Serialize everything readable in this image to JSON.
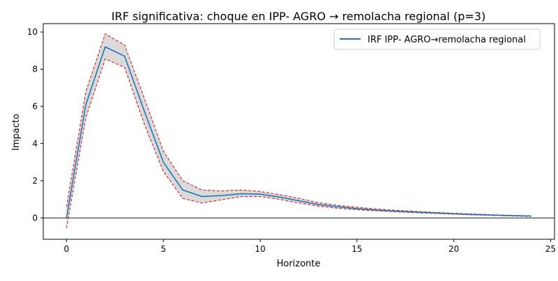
{
  "chart_data": {
    "type": "line",
    "title": "IRF significativa: choque en IPP- AGRO → remolacha regional (p=3)",
    "xlabel": "Horizonte",
    "ylabel": "Impacto",
    "xlim": [
      -1.2,
      25.2
    ],
    "ylim": [
      -1.15,
      10.45
    ],
    "xticks": [
      0,
      5,
      10,
      15,
      20,
      25
    ],
    "yticks": [
      0,
      2,
      4,
      6,
      8,
      10
    ],
    "grid": false,
    "zero_line": true,
    "legend_position": "top-right",
    "x": [
      0,
      1,
      2,
      3,
      4,
      5,
      6,
      7,
      8,
      9,
      10,
      11,
      12,
      13,
      14,
      15,
      16,
      17,
      18,
      19,
      20,
      21,
      22,
      23,
      24
    ],
    "series": [
      {
        "name": "IRF IPP- AGRO→remolacha regional",
        "color": "#1f77b4",
        "values": [
          0.0,
          6.1,
          9.2,
          8.7,
          5.8,
          3.0,
          1.5,
          1.15,
          1.2,
          1.3,
          1.28,
          1.12,
          0.92,
          0.72,
          0.6,
          0.5,
          0.42,
          0.36,
          0.31,
          0.27,
          0.22,
          0.18,
          0.15,
          0.12,
          0.1
        ]
      }
    ],
    "band": {
      "fill_color": "#d3d3d3",
      "edge_color": "#e41a1c",
      "lower": [
        -0.55,
        5.4,
        8.55,
        8.1,
        5.1,
        2.5,
        1.05,
        0.8,
        0.97,
        1.15,
        1.15,
        1.0,
        0.8,
        0.63,
        0.52,
        0.44,
        0.38,
        0.33,
        0.28,
        0.24,
        0.2,
        0.16,
        0.13,
        0.1,
        0.08
      ],
      "upper": [
        0.6,
        6.8,
        9.9,
        9.3,
        6.5,
        3.6,
        2.0,
        1.5,
        1.45,
        1.5,
        1.42,
        1.25,
        1.05,
        0.82,
        0.68,
        0.57,
        0.48,
        0.41,
        0.35,
        0.3,
        0.25,
        0.21,
        0.17,
        0.14,
        0.11
      ]
    }
  }
}
